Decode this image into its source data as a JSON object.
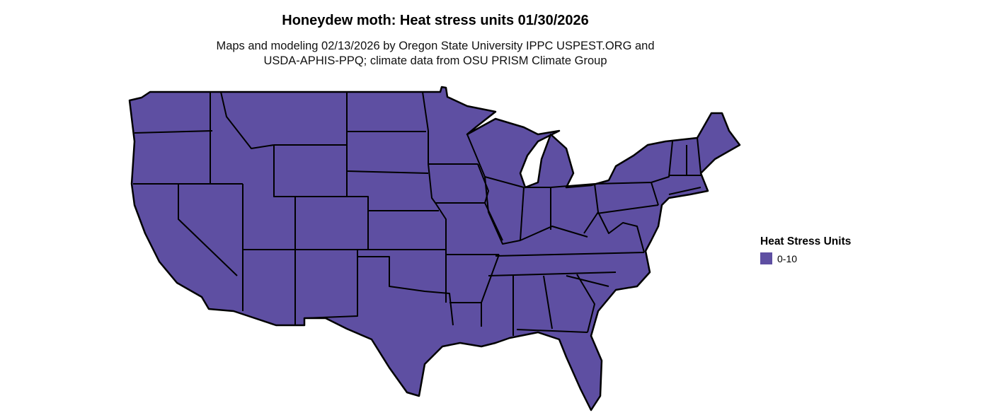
{
  "title": "Honeydew moth: Heat stress units 01/30/2026",
  "subtitle_line1": "Maps and modeling 02/13/2026 by Oregon State University IPPC USPEST.ORG and",
  "subtitle_line2": "USDA-APHIS-PPQ; climate data from OSU PRISM Climate Group",
  "map": {
    "region": "Contiguous United States",
    "fill_color": "#5e4fa2",
    "border_color": "#000000"
  },
  "legend": {
    "title": "Heat Stress Units",
    "items": [
      {
        "label": "0-10",
        "color": "#5e4fa2"
      }
    ]
  }
}
